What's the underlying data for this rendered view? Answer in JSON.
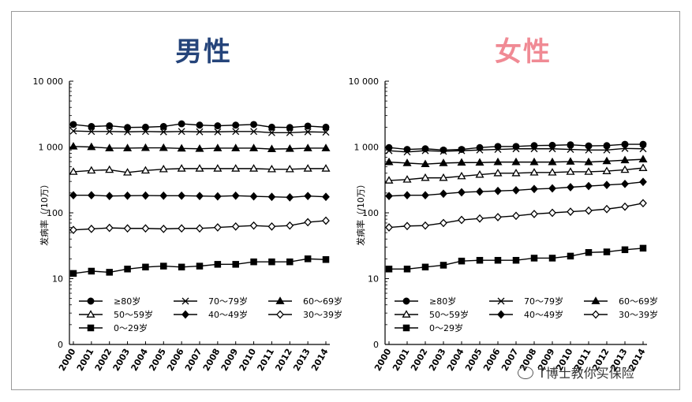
{
  "watermark": "T博士教你买保险",
  "chart_data": [
    {
      "type": "line",
      "title": "男性",
      "ylabel": "发病率（/10万）",
      "yscale": "log",
      "ylim": [
        0,
        10000
      ],
      "yticks": [
        "0",
        "10",
        "100",
        "1 000",
        "10 000"
      ],
      "x": [
        "2000",
        "2001",
        "2002",
        "2003",
        "2004",
        "2005",
        "2006",
        "2007",
        "2008",
        "2009",
        "2010",
        "2011",
        "2012",
        "2013",
        "2014"
      ],
      "legend_placement": "bottom-left",
      "grid": false,
      "series": [
        {
          "name": "≥80岁",
          "marker": "circle",
          "values": [
            2200,
            2050,
            2100,
            1980,
            2000,
            2050,
            2250,
            2150,
            2100,
            2150,
            2200,
            2000,
            1980,
            2080,
            2000
          ]
        },
        {
          "name": "70～79岁",
          "marker": "x",
          "values": [
            1750,
            1720,
            1720,
            1700,
            1720,
            1700,
            1720,
            1700,
            1700,
            1720,
            1720,
            1650,
            1650,
            1700,
            1680
          ]
        },
        {
          "name": "60～69岁",
          "marker": "triangle",
          "values": [
            1020,
            1000,
            960,
            960,
            970,
            970,
            950,
            940,
            960,
            960,
            960,
            930,
            940,
            960,
            960
          ]
        },
        {
          "name": "50～59岁",
          "marker": "triangle-open",
          "values": [
            420,
            440,
            450,
            410,
            440,
            460,
            470,
            470,
            470,
            470,
            470,
            460,
            460,
            470,
            470
          ]
        },
        {
          "name": "40～49岁",
          "marker": "diamond",
          "values": [
            185,
            185,
            180,
            182,
            183,
            182,
            182,
            180,
            178,
            182,
            178,
            175,
            172,
            180,
            175
          ]
        },
        {
          "name": "30～39岁",
          "marker": "diamond-open",
          "values": [
            55,
            57,
            59,
            58,
            58,
            57,
            58,
            58,
            60,
            62,
            64,
            62,
            64,
            72,
            76
          ]
        },
        {
          "name": "0～29岁",
          "marker": "square",
          "values": [
            12,
            13,
            12.5,
            14,
            15,
            15.5,
            15,
            15.5,
            16.5,
            16.5,
            18,
            18,
            18,
            20,
            19.5
          ]
        }
      ]
    },
    {
      "type": "line",
      "title": "女性",
      "ylabel": "发病率（/10万）",
      "yscale": "log",
      "ylim": [
        0,
        10000
      ],
      "yticks": [
        "0",
        "10",
        "100",
        "1 000",
        "10 000"
      ],
      "x": [
        "2000",
        "2001",
        "2002",
        "2003",
        "2004",
        "2005",
        "2006",
        "2007",
        "2008",
        "2009",
        "2010",
        "2011",
        "2012",
        "2013",
        "2014"
      ],
      "legend_placement": "bottom-left",
      "grid": false,
      "series": [
        {
          "name": "≥80岁",
          "marker": "circle",
          "values": [
            980,
            920,
            940,
            900,
            920,
            980,
            1020,
            1020,
            1050,
            1060,
            1080,
            1040,
            1050,
            1100,
            1100
          ]
        },
        {
          "name": "70～79岁",
          "marker": "x",
          "values": [
            880,
            840,
            880,
            860,
            880,
            900,
            920,
            940,
            940,
            940,
            920,
            900,
            900,
            950,
            940
          ]
        },
        {
          "name": "60～69岁",
          "marker": "triangle",
          "values": [
            590,
            570,
            550,
            570,
            580,
            580,
            590,
            590,
            590,
            590,
            600,
            590,
            610,
            630,
            650
          ]
        },
        {
          "name": "50～59岁",
          "marker": "triangle-open",
          "values": [
            310,
            320,
            340,
            340,
            360,
            380,
            400,
            400,
            410,
            410,
            420,
            420,
            430,
            450,
            480
          ]
        },
        {
          "name": "40～49岁",
          "marker": "diamond",
          "values": [
            180,
            185,
            185,
            195,
            205,
            210,
            215,
            220,
            230,
            235,
            245,
            255,
            265,
            275,
            295
          ]
        },
        {
          "name": "30～39岁",
          "marker": "diamond-open",
          "values": [
            60,
            63,
            64,
            70,
            78,
            82,
            86,
            90,
            96,
            100,
            104,
            108,
            114,
            124,
            140
          ]
        },
        {
          "name": "0～29岁",
          "marker": "square",
          "values": [
            14,
            14,
            15,
            16,
            18.5,
            19,
            19,
            19,
            20.5,
            20.5,
            22,
            25,
            25.5,
            27.5,
            29
          ]
        }
      ]
    }
  ]
}
